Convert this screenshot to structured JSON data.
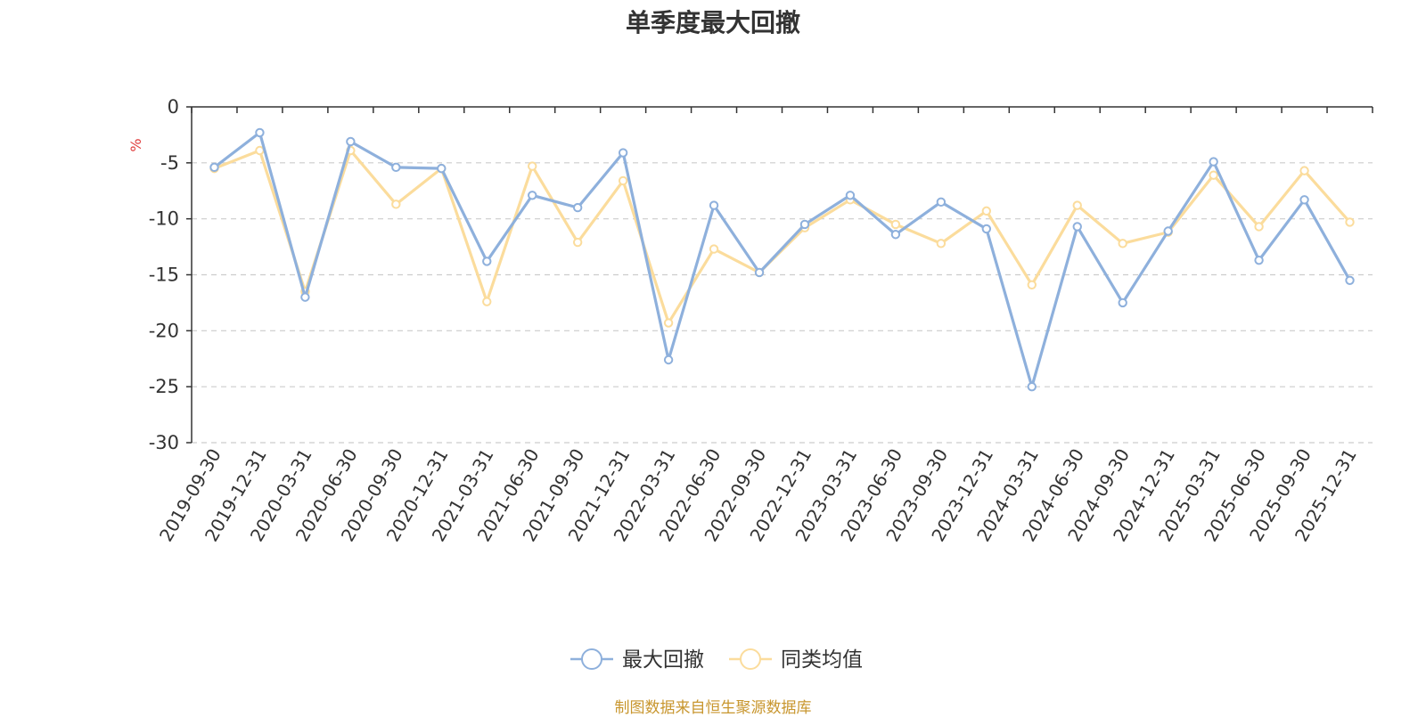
{
  "chart_data": {
    "type": "line",
    "title": "单季度最大回撤",
    "ylabel": "%",
    "xlabel": "",
    "ylim": [
      -30,
      0
    ],
    "yticks": [
      0,
      -5,
      -10,
      -15,
      -20,
      -25,
      -30
    ],
    "grid": true,
    "legend_position": "bottom-center",
    "categories": [
      "2019-09-30",
      "2019-12-31",
      "2020-03-31",
      "2020-06-30",
      "2020-09-30",
      "2020-12-31",
      "2021-03-31",
      "2021-06-30",
      "2021-09-30",
      "2021-12-31",
      "2022-03-31",
      "2022-06-30",
      "2022-09-30",
      "2022-12-31",
      "2023-03-31",
      "2023-06-30",
      "2023-09-30",
      "2023-12-31",
      "2024-03-31",
      "2024-06-30",
      "2024-09-30",
      "2024-12-31",
      "2025-03-31",
      "2025-06-30",
      "2025-09-30",
      "2025-12-31"
    ],
    "series": [
      {
        "name": "最大回撤",
        "color": "#8eb0dc",
        "values": [
          -5.4,
          -2.3,
          -17.0,
          -3.1,
          -5.4,
          -5.5,
          -13.8,
          -7.9,
          -9.0,
          -4.1,
          -22.6,
          -8.8,
          -14.8,
          -10.5,
          -7.9,
          -11.4,
          -8.5,
          -10.9,
          -25.0,
          -10.7,
          -17.5,
          -11.1,
          -4.9,
          -13.7,
          -8.3,
          -15.5
        ]
      },
      {
        "name": "同类均值",
        "color": "#fbdc9c",
        "values": [
          -5.5,
          -3.9,
          -16.5,
          -3.9,
          -8.7,
          -5.5,
          -17.4,
          -5.3,
          -12.1,
          -6.6,
          -19.3,
          -12.7,
          -14.8,
          -10.8,
          -8.3,
          -10.5,
          -12.2,
          -9.3,
          -15.9,
          -8.8,
          -12.2,
          -11.2,
          -6.1,
          -10.7,
          -5.7,
          -10.3
        ]
      }
    ]
  },
  "footer": {
    "source": "制图数据来自恒生聚源数据库"
  }
}
